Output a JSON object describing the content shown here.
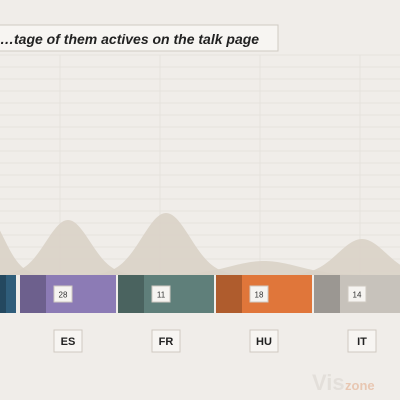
{
  "chart_data": {
    "type": "area",
    "title": "…tage of them actives on the talk page",
    "categories": [
      "",
      "ES",
      "FR",
      "HU",
      "IT"
    ],
    "values": [
      null,
      28,
      11,
      18,
      14
    ],
    "bar_colors": [
      "#2f5d7a",
      "#8c7bb5",
      "#5f7f7a",
      "#e0763a",
      "#c7c2bb"
    ],
    "distribution_color": "#d9d1c6",
    "grid": true,
    "legend": "none"
  },
  "watermark": {
    "text": "Vis",
    "accent": "zone"
  }
}
